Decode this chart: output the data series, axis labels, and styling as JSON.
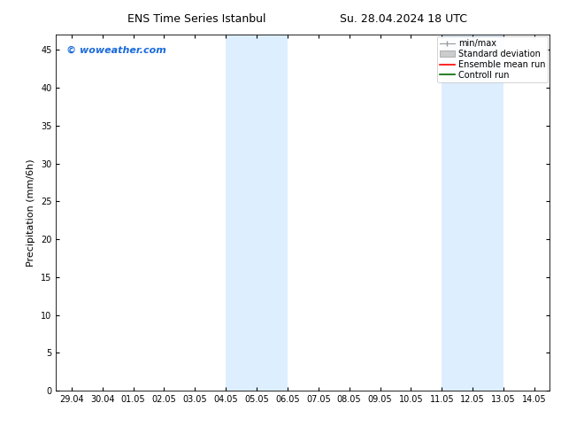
{
  "title_left": "ENS Time Series Istanbul",
  "title_right": "Su. 28.04.2024 18 UTC",
  "ylabel": "Precipitation (mm/6h)",
  "watermark": "© woweather.com",
  "watermark_color": "#1a6adb",
  "background_color": "#ffffff",
  "shaded_regions": [
    {
      "x_start": 5.0,
      "x_end": 7.0,
      "color": "#ddeeff"
    },
    {
      "x_start": 12.0,
      "x_end": 14.0,
      "color": "#ddeeff"
    }
  ],
  "ylim": [
    0,
    47
  ],
  "yticks": [
    0,
    5,
    10,
    15,
    20,
    25,
    30,
    35,
    40,
    45
  ],
  "x_labels": [
    "29.04",
    "30.04",
    "01.05",
    "02.05",
    "03.05",
    "04.05",
    "05.05",
    "06.05",
    "07.05",
    "08.05",
    "09.05",
    "10.05",
    "11.05",
    "12.05",
    "13.05",
    "14.05"
  ],
  "x_values": [
    0,
    1,
    2,
    3,
    4,
    5,
    6,
    7,
    8,
    9,
    10,
    11,
    12,
    13,
    14,
    15
  ],
  "xlim": [
    -0.5,
    15.5
  ],
  "legend_items": [
    {
      "label": "min/max",
      "color": "#aaaaaa",
      "style": "minmax"
    },
    {
      "label": "Standard deviation",
      "color": "#cccccc",
      "style": "fill"
    },
    {
      "label": "Ensemble mean run",
      "color": "#ff0000",
      "style": "line"
    },
    {
      "label": "Controll run",
      "color": "#008000",
      "style": "line"
    }
  ],
  "title_fontsize": 9,
  "axis_fontsize": 8,
  "tick_fontsize": 7,
  "watermark_fontsize": 8,
  "legend_fontsize": 7
}
